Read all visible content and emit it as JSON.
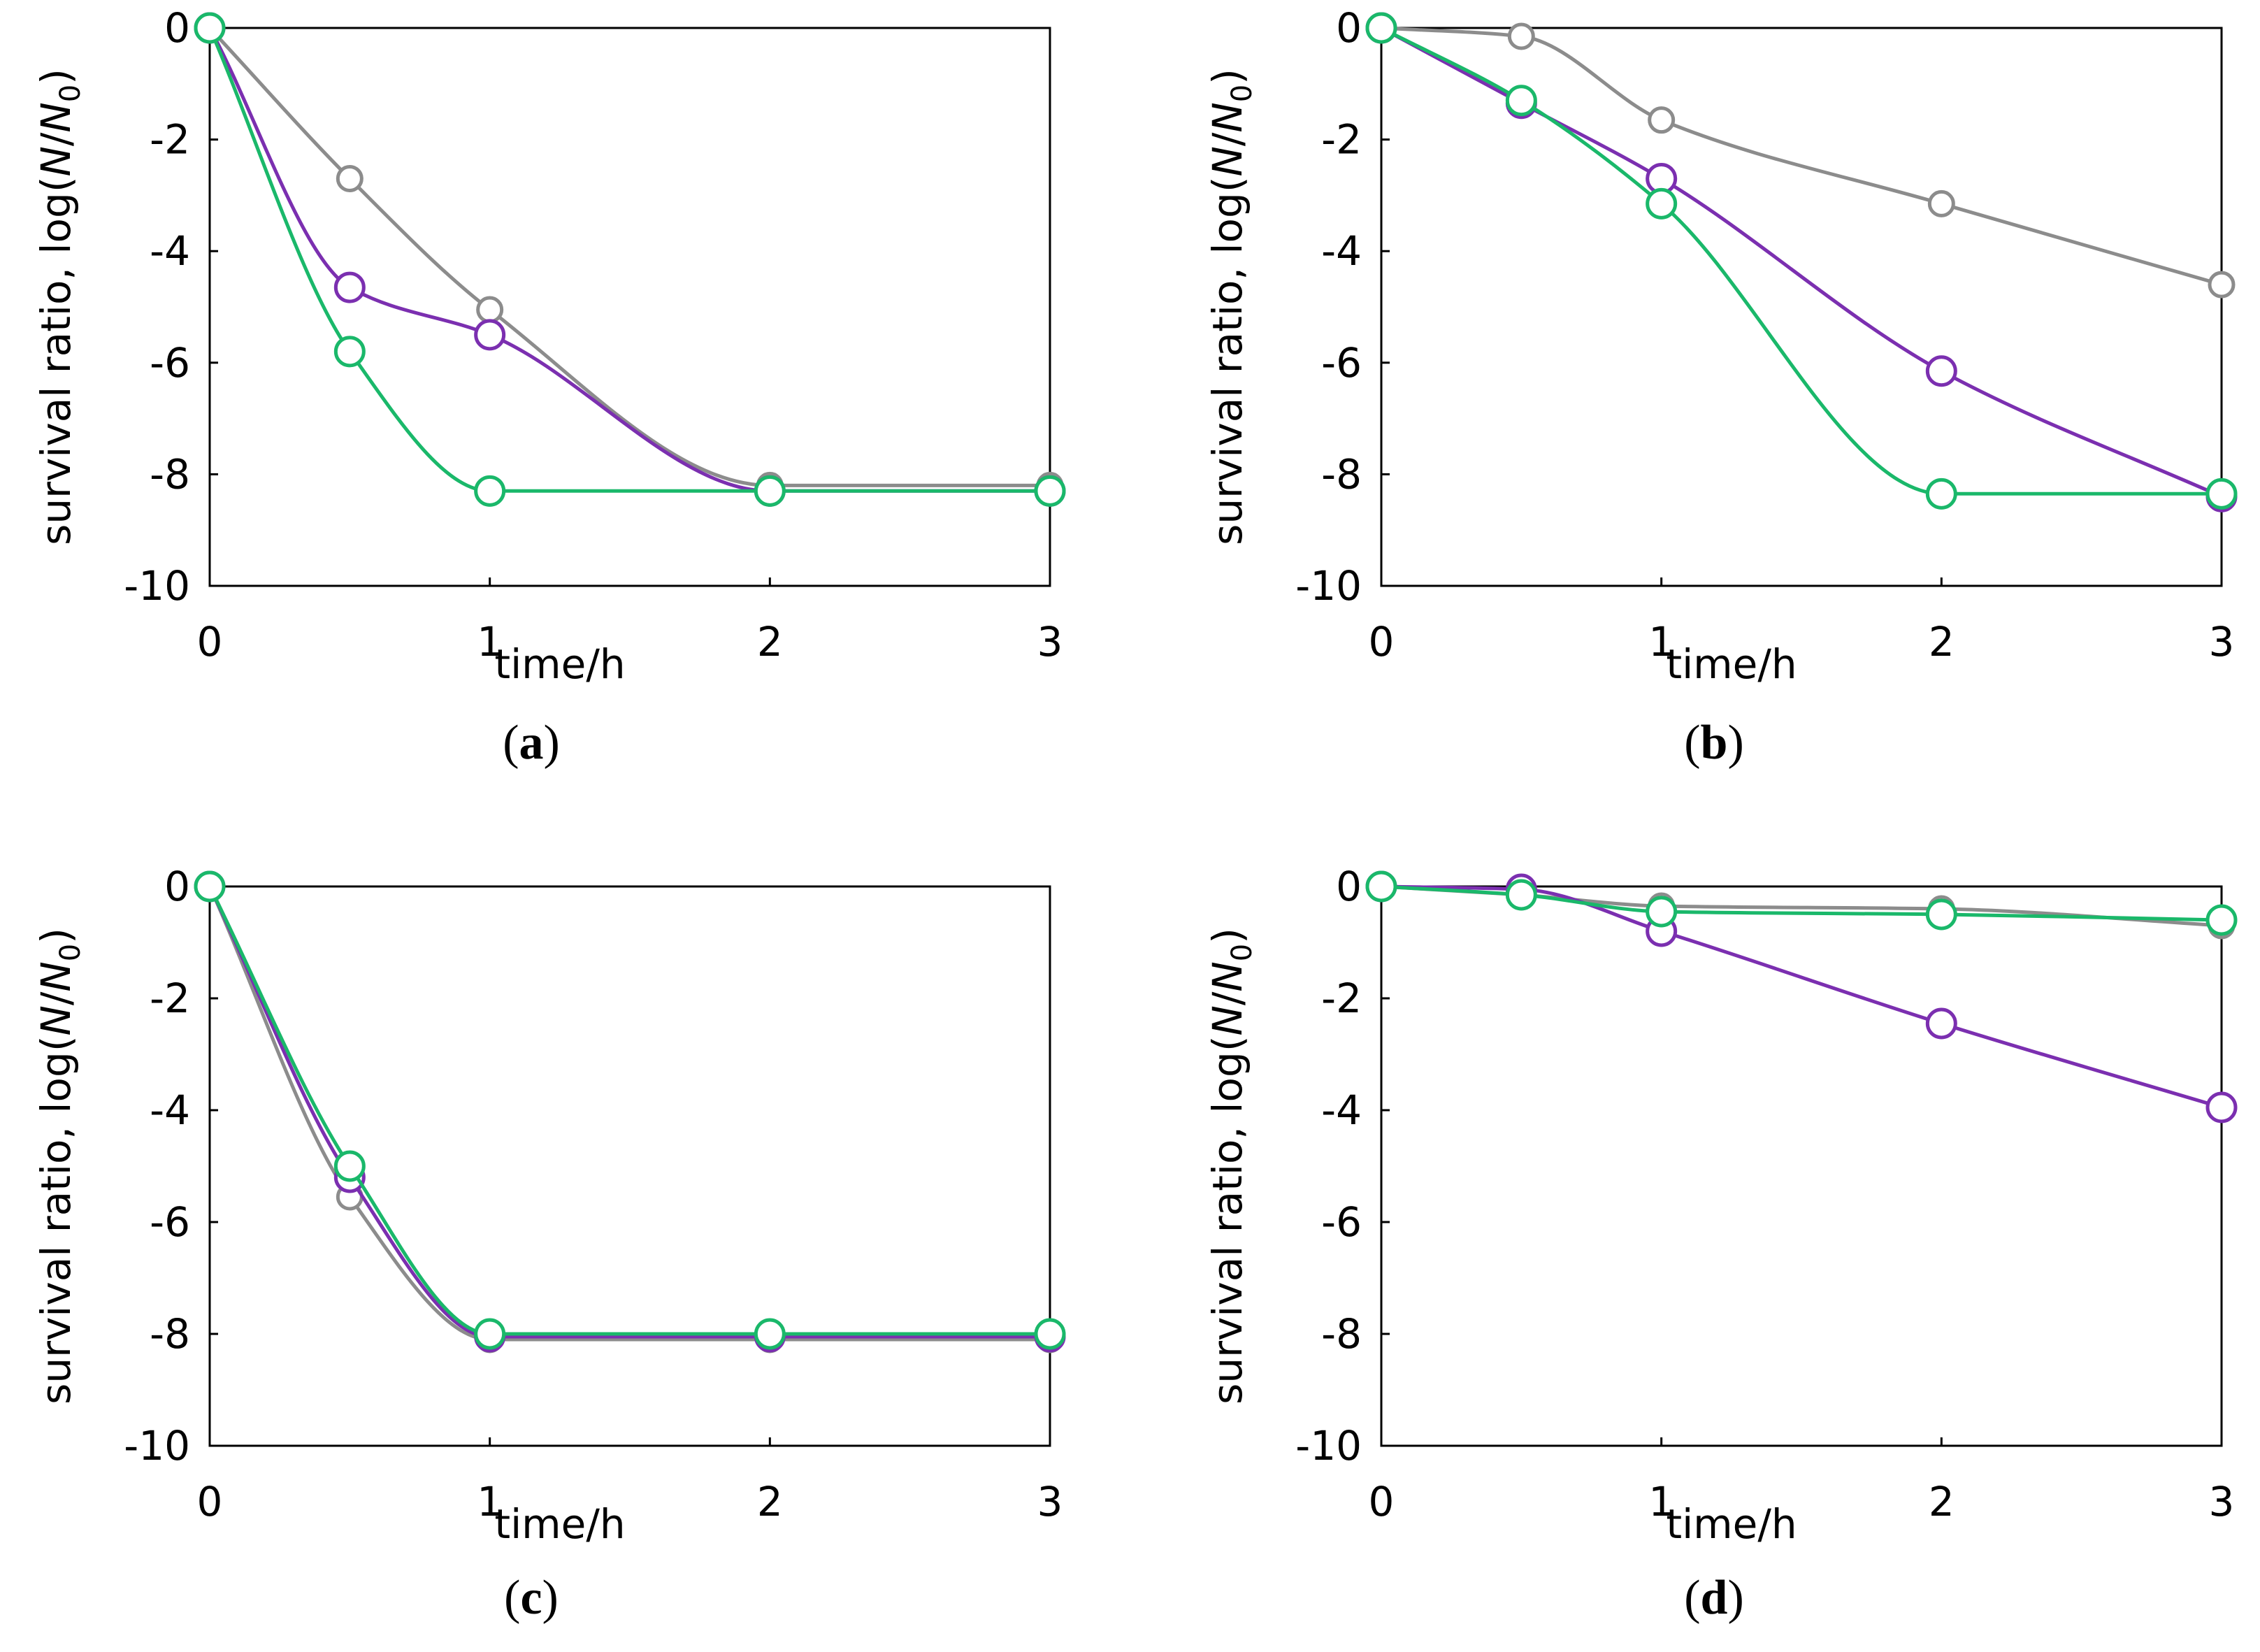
{
  "legend_series": [
    "gray",
    "purple",
    "green"
  ],
  "series_colors": {
    "gray": "#8c8c8c",
    "purple": "#7b2fb0",
    "green": "#1ab86a"
  },
  "chart_data": [
    {
      "type": "line",
      "panel": "a",
      "panel_label": {
        "open": "(",
        "letter": "a",
        "close": ")"
      },
      "xlabel": "time/h",
      "ylabel": {
        "prefix": "survival ratio, log(",
        "n": "N",
        "slash": "/",
        "n0": "N",
        "sub": "0",
        "suffix": ")"
      },
      "xlim": [
        0,
        3
      ],
      "ylim": [
        -10,
        0
      ],
      "xticks": [
        0,
        1,
        2,
        3
      ],
      "yticks": [
        0,
        -2,
        -4,
        -6,
        -8,
        -10
      ],
      "x": [
        0,
        0.5,
        1,
        2,
        3
      ],
      "series": [
        {
          "name": "gray",
          "values": [
            0,
            -2.7,
            -5.05,
            -8.2,
            -8.2
          ]
        },
        {
          "name": "purple",
          "values": [
            0,
            -4.65,
            -5.5,
            -8.3,
            -8.3
          ]
        },
        {
          "name": "green",
          "values": [
            0,
            -5.8,
            -8.3,
            -8.3,
            -8.3
          ]
        }
      ]
    },
    {
      "type": "line",
      "panel": "b",
      "panel_label": {
        "open": "(",
        "letter": "b",
        "close": ")"
      },
      "xlabel": "time/h",
      "ylabel": {
        "prefix": "survival ratio, log(",
        "n": "N",
        "slash": "/",
        "n0": "N",
        "sub": "0",
        "suffix": ")"
      },
      "xlim": [
        0,
        3
      ],
      "ylim": [
        -10,
        0
      ],
      "xticks": [
        0,
        1,
        2,
        3
      ],
      "yticks": [
        0,
        -2,
        -4,
        -6,
        -8,
        -10
      ],
      "x": [
        0,
        0.5,
        1,
        2,
        3
      ],
      "series": [
        {
          "name": "gray",
          "values": [
            0,
            -0.15,
            -1.65,
            -3.15,
            -4.6
          ]
        },
        {
          "name": "purple",
          "values": [
            0,
            -1.35,
            -2.7,
            -6.15,
            -8.4
          ]
        },
        {
          "name": "green",
          "values": [
            0,
            -1.3,
            -3.15,
            -8.35,
            -8.35
          ]
        }
      ]
    },
    {
      "type": "line",
      "panel": "c",
      "panel_label": {
        "open": "(",
        "letter": "c",
        "close": ")"
      },
      "xlabel": "time/h",
      "ylabel": {
        "prefix": "survival ratio, log(",
        "n": "N",
        "slash": "/",
        "n0": "N",
        "sub": "0",
        "suffix": ")"
      },
      "xlim": [
        0,
        3
      ],
      "ylim": [
        -10,
        0
      ],
      "xticks": [
        0,
        1,
        2,
        3
      ],
      "yticks": [
        0,
        -2,
        -4,
        -6,
        -8,
        -10
      ],
      "x": [
        0,
        0.5,
        1,
        2,
        3
      ],
      "series": [
        {
          "name": "gray",
          "values": [
            0,
            -5.55,
            -8.1,
            -8.1,
            -8.1
          ]
        },
        {
          "name": "purple",
          "values": [
            0,
            -5.2,
            -8.05,
            -8.05,
            -8.05
          ]
        },
        {
          "name": "green",
          "values": [
            0,
            -5.0,
            -8.0,
            -8.0,
            -8.0
          ]
        }
      ]
    },
    {
      "type": "line",
      "panel": "d",
      "panel_label": {
        "open": "(",
        "letter": "d",
        "close": ")"
      },
      "xlabel": "time/h",
      "ylabel": {
        "prefix": "survival ratio, log(",
        "n": "N",
        "slash": "/",
        "n0": "N",
        "sub": "0",
        "suffix": ")"
      },
      "xlim": [
        0,
        3
      ],
      "ylim": [
        -10,
        0
      ],
      "xticks": [
        0,
        1,
        2,
        3
      ],
      "yticks": [
        0,
        -2,
        -4,
        -6,
        -8,
        -10
      ],
      "x": [
        0,
        0.5,
        1,
        2,
        3
      ],
      "series": [
        {
          "name": "gray",
          "values": [
            0,
            -0.15,
            -0.35,
            -0.4,
            -0.7
          ]
        },
        {
          "name": "purple",
          "values": [
            0,
            -0.05,
            -0.8,
            -2.45,
            -3.95
          ]
        },
        {
          "name": "green",
          "values": [
            0,
            -0.15,
            -0.45,
            -0.5,
            -0.6
          ]
        }
      ]
    }
  ]
}
